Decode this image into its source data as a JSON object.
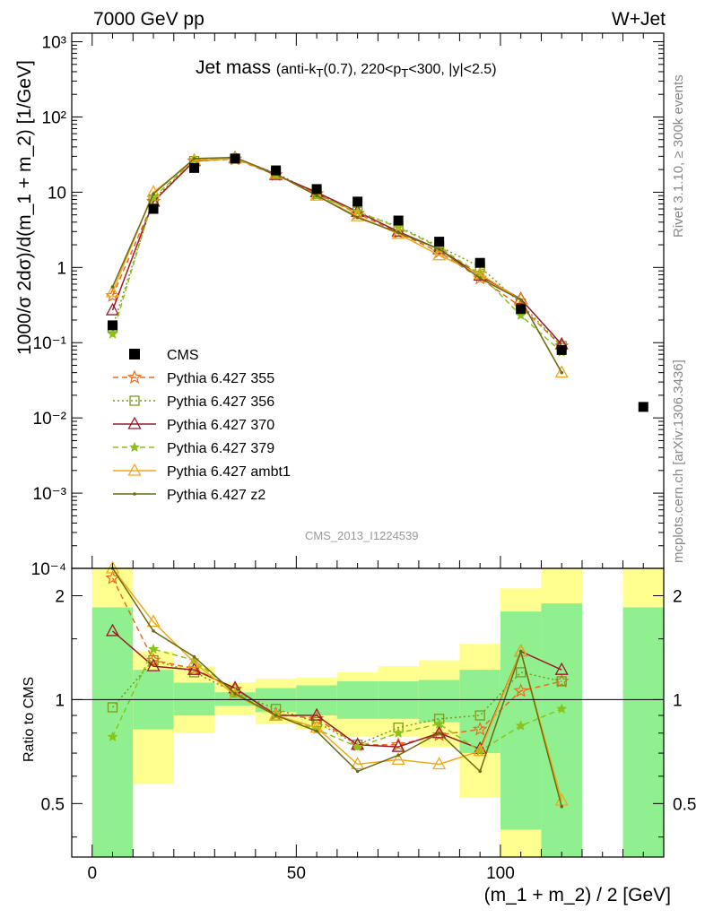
{
  "header": {
    "left": "7000 GeV pp",
    "right": "W+Jet"
  },
  "plot_title_main": "Jet mass",
  "plot_title_cuts_html": "(anti-k<sub>T</sub>(0.7), 220&lt;p<sub>T</sub>&lt;300, |y|&lt;2.5)",
  "side_labels": {
    "rivet": "Rivet 3.1.10, ≥ 300k events",
    "mcplots": "mcplots.cern.ch [arXiv:1306.3436]"
  },
  "watermark": "CMS_2013_I1224539",
  "colors": {
    "CMS": "#000000",
    "p355": "#ee6a1a",
    "p356": "#7a9a1a",
    "p370": "#9a1a2a",
    "p379": "#8ac21a",
    "ambt1": "#f2a81a",
    "z2": "#6b6b12",
    "band_green": "#90f090",
    "band_yellow": "#ffff90"
  },
  "chart_data": [
    {
      "type": "line",
      "title": "Jet mass (anti-kT(0.7), 220<pT<300, |y|<2.5)",
      "xlabel": "",
      "ylabel": "1000/σ 2dσ)/d(m_1 + m_2) [1/GeV]",
      "yscale": "log",
      "xlim": [
        -5,
        140
      ],
      "ylim": [
        0.0001,
        1300
      ],
      "y_tick_labels": [
        "10⁻⁴",
        "10⁻³",
        "10⁻²",
        "10⁻¹",
        "1",
        "10",
        "10²",
        "10³"
      ],
      "legend_position": "left-center",
      "x": [
        5,
        15,
        25,
        35,
        45,
        55,
        65,
        75,
        85,
        95,
        105,
        115
      ],
      "data_points": {
        "name": "CMS",
        "x": [
          5,
          15,
          25,
          35,
          45,
          55,
          65,
          75,
          85,
          95,
          105,
          115,
          135
        ],
        "values": [
          0.17,
          6.0,
          21,
          28,
          19.5,
          11,
          7.5,
          4.2,
          2.2,
          1.15,
          0.28,
          0.08,
          0.014
        ]
      },
      "series": [
        {
          "name": "Pythia 6.427 355",
          "key": "p355",
          "marker": "star-open",
          "dash": "6,4",
          "values": [
            0.42,
            7.5,
            26,
            27.5,
            17,
            9.5,
            5.2,
            2.9,
            1.6,
            0.72,
            0.3,
            0.09
          ]
        },
        {
          "name": "Pythia 6.427 356",
          "key": "p356",
          "marker": "square-open",
          "dash": "2,3",
          "values": [
            0.16,
            8.0,
            26,
            28,
            18,
            9.5,
            5.5,
            3.5,
            1.9,
            1.02,
            0.33,
            0.09
          ]
        },
        {
          "name": "Pythia 6.427 370",
          "key": "p370",
          "marker": "triangle-open",
          "dash": "",
          "values": [
            0.27,
            7.5,
            26,
            28.5,
            17,
            10,
            5.5,
            3.0,
            1.75,
            0.78,
            0.38,
            0.095
          ]
        },
        {
          "name": "Pythia 6.427 379",
          "key": "p379",
          "marker": "star-filled",
          "dash": "6,4",
          "values": [
            0.13,
            8.5,
            27,
            28.5,
            17.5,
            9.0,
            5.5,
            3.4,
            1.85,
            0.82,
            0.23,
            0.075
          ]
        },
        {
          "name": "Pythia 6.427 ambt1",
          "key": "ambt1",
          "marker": "triangle-open",
          "dash": "",
          "values": [
            0.47,
            10,
            26.5,
            28,
            17.5,
            9.0,
            4.8,
            2.8,
            1.45,
            0.82,
            0.37,
            0.04
          ]
        },
        {
          "name": "Pythia 6.427 z2",
          "key": "z2",
          "marker": "dot",
          "dash": "",
          "values": [
            0.55,
            9.5,
            28,
            29,
            17.5,
            9.0,
            4.6,
            2.9,
            1.75,
            0.72,
            0.37,
            0.04
          ]
        }
      ]
    },
    {
      "type": "line",
      "title": "",
      "xlabel": "(m_1 + m_2) / 2 [GeV]",
      "ylabel": "Ratio to CMS",
      "yscale": "log",
      "xlim": [
        -5,
        140
      ],
      "ylim": [
        0.35,
        2.4
      ],
      "y_tick_labels": [
        "0.5",
        "1",
        "2"
      ],
      "x_tick_labels": [
        "0",
        "50",
        "100"
      ],
      "reference_line": 1,
      "bands": [
        {
          "x0": 0,
          "x1": 10,
          "green": [
            0.35,
            1.85
          ],
          "yellow": [
            0.35,
            2.4
          ]
        },
        {
          "x0": 10,
          "x1": 20,
          "green": [
            0.82,
            1.22
          ],
          "yellow": [
            0.57,
            1.38
          ]
        },
        {
          "x0": 20,
          "x1": 30,
          "green": [
            0.9,
            1.12
          ],
          "yellow": [
            0.8,
            1.25
          ]
        },
        {
          "x0": 30,
          "x1": 40,
          "green": [
            0.96,
            1.05
          ],
          "yellow": [
            0.9,
            1.12
          ]
        },
        {
          "x0": 40,
          "x1": 50,
          "green": [
            0.92,
            1.08
          ],
          "yellow": [
            0.85,
            1.15
          ]
        },
        {
          "x0": 50,
          "x1": 60,
          "green": [
            0.9,
            1.1
          ],
          "yellow": [
            0.82,
            1.16
          ]
        },
        {
          "x0": 60,
          "x1": 70,
          "green": [
            0.88,
            1.13
          ],
          "yellow": [
            0.78,
            1.2
          ]
        },
        {
          "x0": 70,
          "x1": 80,
          "green": [
            0.88,
            1.13
          ],
          "yellow": [
            0.78,
            1.25
          ]
        },
        {
          "x0": 80,
          "x1": 90,
          "green": [
            0.86,
            1.14
          ],
          "yellow": [
            0.73,
            1.3
          ]
        },
        {
          "x0": 90,
          "x1": 100,
          "green": [
            0.7,
            1.22
          ],
          "yellow": [
            0.52,
            1.45
          ]
        },
        {
          "x0": 100,
          "x1": 110,
          "green": [
            0.42,
            1.8
          ],
          "yellow": [
            0.35,
            2.1
          ]
        },
        {
          "x0": 110,
          "x1": 120,
          "green": [
            0.35,
            1.9
          ],
          "yellow": [
            0.35,
            2.4
          ]
        },
        {
          "x0": 130,
          "x1": 140,
          "green": [
            0.35,
            1.85
          ],
          "yellow": [
            0.35,
            2.4
          ]
        }
      ],
      "x": [
        5,
        15,
        25,
        35,
        45,
        55,
        65,
        75,
        85,
        95,
        105,
        115
      ],
      "series": [
        {
          "name": "Pythia 6.427 355",
          "key": "p355",
          "marker": "star-open",
          "dash": "6,4",
          "values": [
            2.25,
            1.3,
            1.23,
            1.07,
            0.91,
            0.88,
            0.74,
            0.74,
            0.79,
            0.82,
            1.06,
            1.13
          ]
        },
        {
          "name": "Pythia 6.427 356",
          "key": "p356",
          "marker": "square-open",
          "dash": "2,3",
          "values": [
            0.95,
            1.3,
            1.2,
            1.05,
            0.94,
            0.86,
            0.74,
            0.83,
            0.88,
            0.9,
            1.2,
            1.13
          ]
        },
        {
          "name": "Pythia 6.427 370",
          "key": "p370",
          "marker": "triangle-open",
          "dash": "",
          "values": [
            1.58,
            1.25,
            1.22,
            1.08,
            0.9,
            0.9,
            0.74,
            0.73,
            0.8,
            0.72,
            1.38,
            1.22
          ]
        },
        {
          "name": "Pythia 6.427 379",
          "key": "p379",
          "marker": "star-filled",
          "dash": "6,4",
          "values": [
            0.78,
            1.4,
            1.3,
            1.05,
            0.9,
            0.82,
            0.73,
            0.8,
            0.85,
            0.71,
            0.84,
            0.94
          ]
        },
        {
          "name": "Pythia 6.427 ambt1",
          "key": "ambt1",
          "marker": "triangle-open",
          "dash": "",
          "values": [
            2.75,
            1.68,
            1.28,
            1.03,
            0.9,
            0.83,
            0.65,
            0.67,
            0.65,
            0.71,
            1.38,
            0.51
          ]
        },
        {
          "name": "Pythia 6.427 z2",
          "key": "z2",
          "marker": "dot",
          "dash": "",
          "values": [
            3.2,
            1.58,
            1.33,
            1.04,
            0.9,
            0.81,
            0.62,
            0.69,
            0.8,
            0.62,
            1.38,
            0.49
          ]
        }
      ]
    }
  ]
}
